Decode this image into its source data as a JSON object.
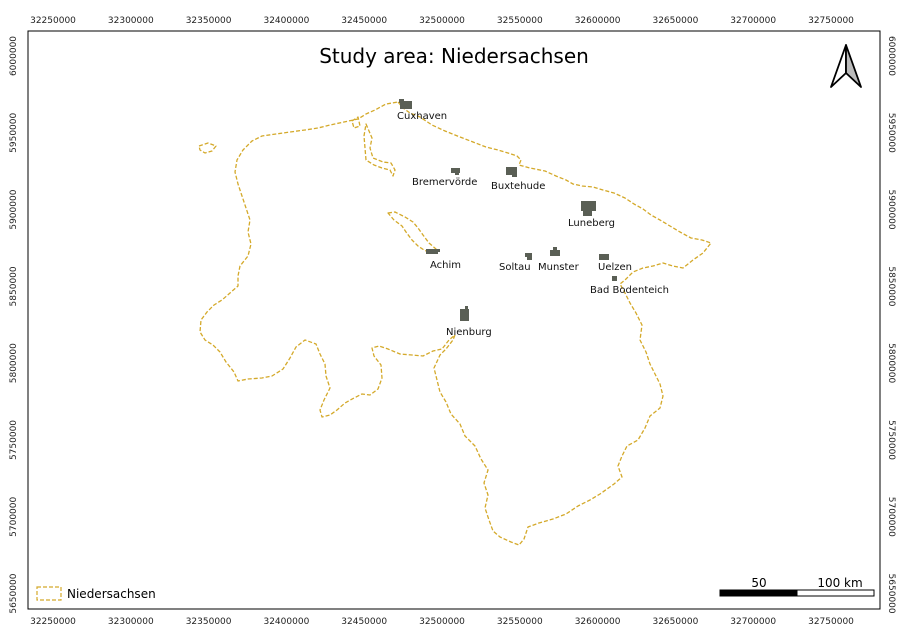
{
  "map": {
    "title": "Study area: Niedersachsen",
    "x_ticks": [
      "32250000",
      "32300000",
      "32350000",
      "32400000",
      "32450000",
      "32500000",
      "32550000",
      "32600000",
      "32650000",
      "32700000",
      "32750000"
    ],
    "y_ticks": [
      "6000000",
      "5950000",
      "5900000",
      "5850000",
      "5800000",
      "5750000",
      "5700000",
      "5650000"
    ],
    "boundary_color": "#d4a92a",
    "raster_color": "#5a5f55",
    "cities": [
      {
        "name": "Cuxhaven"
      },
      {
        "name": "Bremervörde"
      },
      {
        "name": "Buxtehude"
      },
      {
        "name": "Luneberg"
      },
      {
        "name": "Achim"
      },
      {
        "name": "Soltau"
      },
      {
        "name": "Munster"
      },
      {
        "name": "Uelzen"
      },
      {
        "name": "Bad Bodenteich"
      },
      {
        "name": "Nienburg"
      }
    ],
    "legend": {
      "label": "Niedersachsen"
    },
    "scale_bar": {
      "label_mid": "50",
      "label_end": "100 km"
    },
    "north_arrow": "north-arrow-icon"
  }
}
